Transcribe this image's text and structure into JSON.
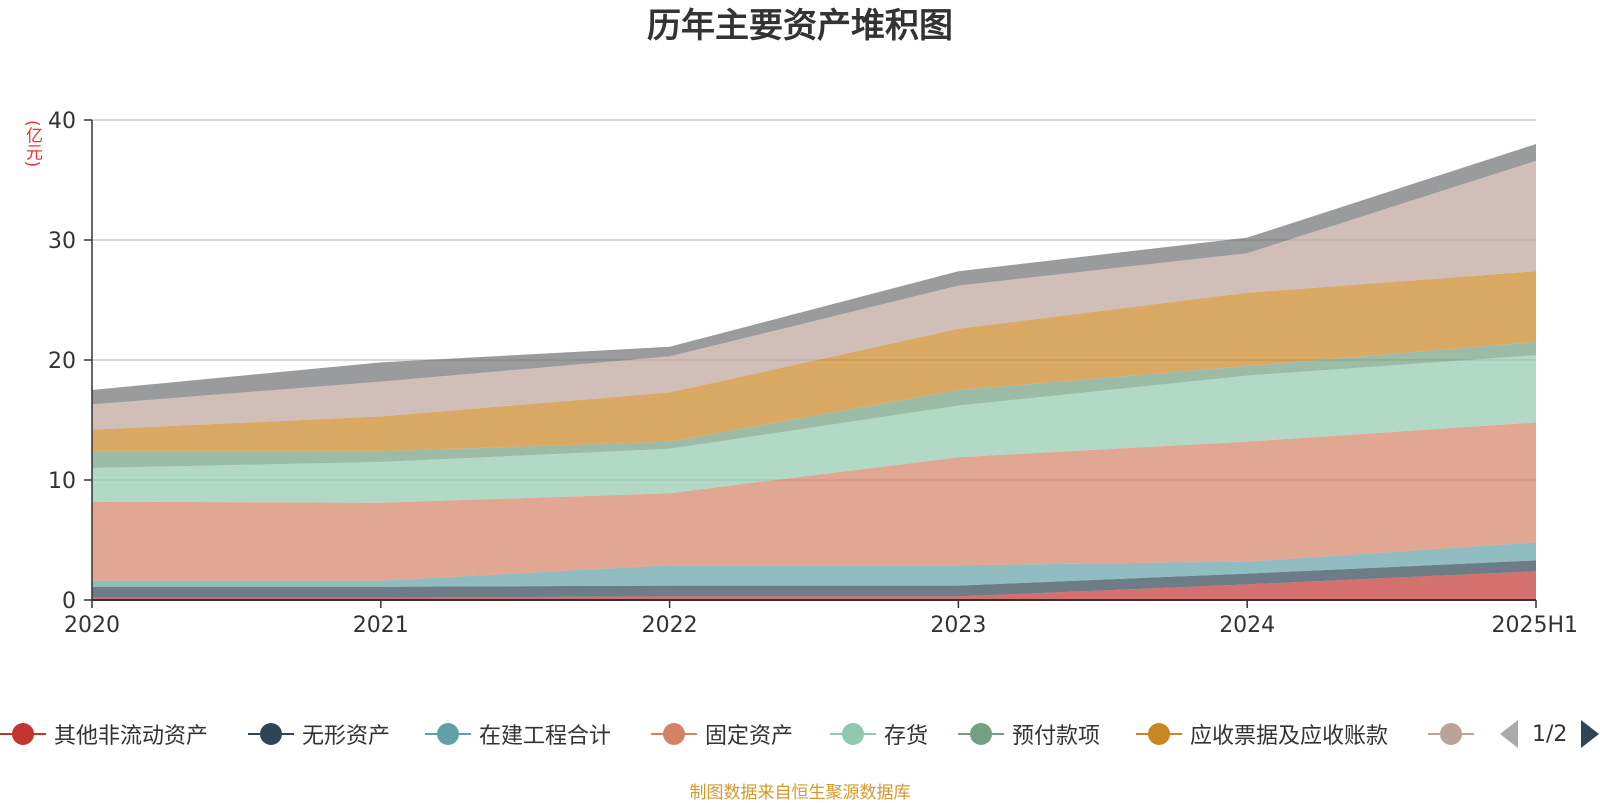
{
  "chart_data": {
    "type": "area",
    "stacked": true,
    "title": "历年主要资产堆积图",
    "unit_label": "(亿元)",
    "categories": [
      "2020",
      "2021",
      "2022",
      "2023",
      "2024",
      "2025H1"
    ],
    "ylim": [
      0,
      40
    ],
    "yticks": [
      0,
      10,
      20,
      30,
      40
    ],
    "grid": true,
    "series": [
      {
        "name": "其他非流动资产",
        "color": "#c23531",
        "values": [
          0.2,
          0.2,
          0.3,
          0.3,
          1.3,
          2.4
        ]
      },
      {
        "name": "无形资产",
        "color": "#2f4554",
        "values": [
          0.9,
          0.9,
          0.9,
          0.9,
          0.9,
          0.9
        ]
      },
      {
        "name": "在建工程合计",
        "color": "#61a0a8",
        "values": [
          0.5,
          0.5,
          1.7,
          1.7,
          1.0,
          1.5
        ]
      },
      {
        "name": "固定资产",
        "color": "#d48265",
        "values": [
          6.6,
          6.5,
          6.0,
          9.0,
          10.0,
          10.0
        ]
      },
      {
        "name": "存货",
        "color": "#91c7ae",
        "values": [
          2.8,
          3.4,
          3.7,
          4.3,
          5.5,
          5.6
        ]
      },
      {
        "name": "预付款项",
        "color": "#749f83",
        "values": [
          1.4,
          0.9,
          0.6,
          1.3,
          0.8,
          1.1
        ]
      },
      {
        "name": "应收票据及应收账款",
        "color": "#ca8622",
        "values": [
          1.8,
          2.9,
          4.1,
          5.1,
          6.1,
          5.9
        ]
      },
      {
        "name": "",
        "color": "#bda29a",
        "values": [
          2.1,
          2.9,
          3.0,
          3.6,
          3.3,
          9.2
        ]
      },
      {
        "name": "",
        "color": "#6e7074",
        "values": [
          1.2,
          1.6,
          0.8,
          1.2,
          1.3,
          1.4
        ]
      }
    ],
    "legend_position": "bottom"
  },
  "legend": {
    "items": [
      {
        "label": "其他非流动资产",
        "color": "#c23531"
      },
      {
        "label": "无形资产",
        "color": "#2f4554"
      },
      {
        "label": "在建工程合计",
        "color": "#61a0a8"
      },
      {
        "label": "固定资产",
        "color": "#d48265"
      },
      {
        "label": "存货",
        "color": "#91c7ae"
      },
      {
        "label": "预付款项",
        "color": "#749f83"
      },
      {
        "label": "应收票据及应收账款",
        "color": "#ca8622"
      },
      {
        "label": "",
        "color": "#bda29a"
      }
    ],
    "page_text": "1/2"
  },
  "footer": {
    "source": "制图数据来自恒生聚源数据库"
  }
}
